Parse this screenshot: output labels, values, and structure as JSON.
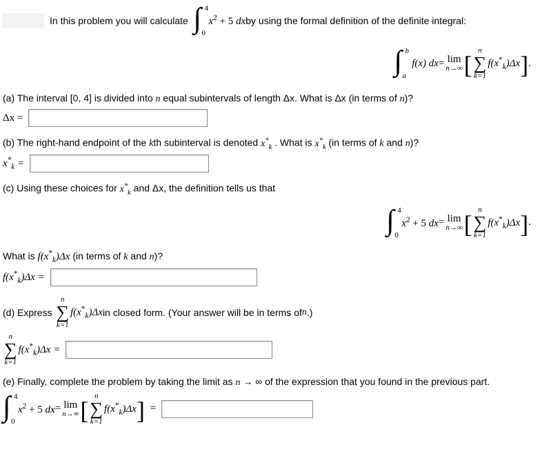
{
  "intro": {
    "lead": "In this problem you will calculate",
    "integral": {
      "upper": "4",
      "lower": "0",
      "body": "x",
      "exp": "2",
      "rest": " + 5 ",
      "dx": "dx"
    },
    "tail": " by using the formal definition of the definite integral:"
  },
  "definition": {
    "lhs": {
      "upper": "b",
      "lower": "a",
      "fx": "f(x) dx"
    },
    "eq": " = ",
    "lim": {
      "top": "lim",
      "bot": "n→∞"
    },
    "sigma": {
      "top": "n",
      "bot": "k=1"
    },
    "term": {
      "f": "f(x",
      "star": "*",
      "sub": "k",
      "close": ")Δx"
    },
    "period": " ."
  },
  "partA": {
    "text": "(a) The interval [0, 4] is divided into ",
    "n": "n",
    "text2": " equal subintervals of length Δx. What is Δx (in terms of ",
    "n2": "n",
    "text3": ")?",
    "label": "Δx ="
  },
  "partB": {
    "text1": "(b) The right-hand endpoint of the ",
    "k": "k",
    "text2": "th subinterval is denoted ",
    "xk": {
      "x": "x",
      "star": "*",
      "sub": "k"
    },
    "text3": " . What is ",
    "text4": " (in terms of ",
    "kand": "k",
    "and": " and ",
    "n": "n",
    "text5": ")?",
    "label_x": "x",
    "label_star": "*",
    "label_sub": "k",
    "label_eq": " ="
  },
  "partC": {
    "text1": "(c) Using these choices for ",
    "text2": " and Δx, the definition tells us that",
    "integral": {
      "upper": "4",
      "lower": "0"
    },
    "body": {
      "x": "x",
      "exp": "2",
      "rest": " + 5 ",
      "dx": "dx"
    },
    "eq": " = ",
    "lim": {
      "top": "lim",
      "bot": "n→∞"
    },
    "sigma": {
      "top": "n",
      "bot": "k=1"
    },
    "term": {
      "f": "f(x",
      "star": "*",
      "sub": "k",
      "close": ")Δx"
    },
    "period": " .",
    "question1": "What is ",
    "question2": " (in terms of ",
    "qk": "k",
    "qand": " and ",
    "qn": "n",
    "question3": ")?",
    "label_f": "f(x",
    "label_star": "*",
    "label_sub": "k",
    "label_close": ")Δx ="
  },
  "partD": {
    "text1": "(d) Express ",
    "sigma": {
      "top": "n",
      "bot": "k=1"
    },
    "term": {
      "f": "f(x",
      "star": "*",
      "sub": "k",
      "close": ")Δx"
    },
    "text2": " in closed form. (Your answer will be in terms of ",
    "n": "n",
    "text3": ".)",
    "label_sigma": {
      "top": "n",
      "bot": "k=1"
    },
    "label_term": {
      "f": "f(x",
      "star": "*",
      "sub": "k",
      "close": ")Δx ="
    }
  },
  "partE": {
    "text": "(e) Finally, complete the problem by taking the limit as ",
    "n": "n",
    "arrow": " → ∞ of the expression that you found in the previous part.",
    "integral": {
      "upper": "4",
      "lower": "0"
    },
    "body": {
      "x": "x",
      "exp": "2",
      "rest": " + 5 ",
      "dx": "dx"
    },
    "eq1": " = ",
    "lim": {
      "top": "lim",
      "bot": "n→∞"
    },
    "sigma": {
      "top": "n",
      "bot": "k=1"
    },
    "term": {
      "f": "f(x",
      "star": "*",
      "sub": "k",
      "close": ")Δx"
    },
    "eq2": "="
  }
}
